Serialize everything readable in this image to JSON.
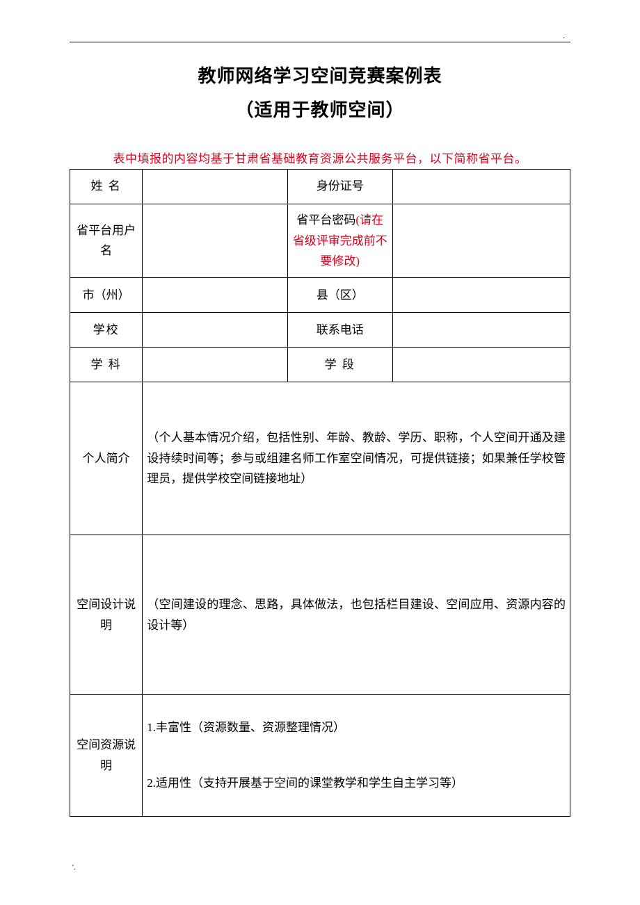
{
  "title_line1": "教师网络学习空间竞赛案例表",
  "title_line2": "（适用于教师空间）",
  "note": "表中填报的内容均基于甘肃省基础教育资源公共服务平台，以下简称省平台。",
  "rows": {
    "name_label": "姓 名",
    "id_label": "身份证号",
    "username_label": "省平台用户名",
    "password_label_prefix": "省平台密码",
    "password_label_red": "(请在省级评审完成前不要修改)",
    "city_label": "市（州）",
    "county_label": "县（区）",
    "school_label": "学校",
    "phone_label": "联系电话",
    "subject_label": "学 科",
    "stage_label": "学 段",
    "profile_label": "个人简介",
    "profile_text": "（个人基本情况介绍，包括性别、年龄、教龄、学历、职称，个人空间开通及建设持续时间等；参与或组建名师工作室空间情况，可提供链接；如果兼任学校管理员，提供学校空间链接地址）",
    "design_label": "空间设计说明",
    "design_text": "（空间建设的理念、思路，具体做法，也包括栏目建设、空间应用、资源内容的设计等）",
    "resource_label": "空间资源说明",
    "resource_item1": "1.丰富性（资源数量、资源整理情况）",
    "resource_item2": "2.适用性（支持开展基于空间的课堂教学和学生自主学习等）"
  },
  "footer_mark": "'.",
  "top_dot": "."
}
